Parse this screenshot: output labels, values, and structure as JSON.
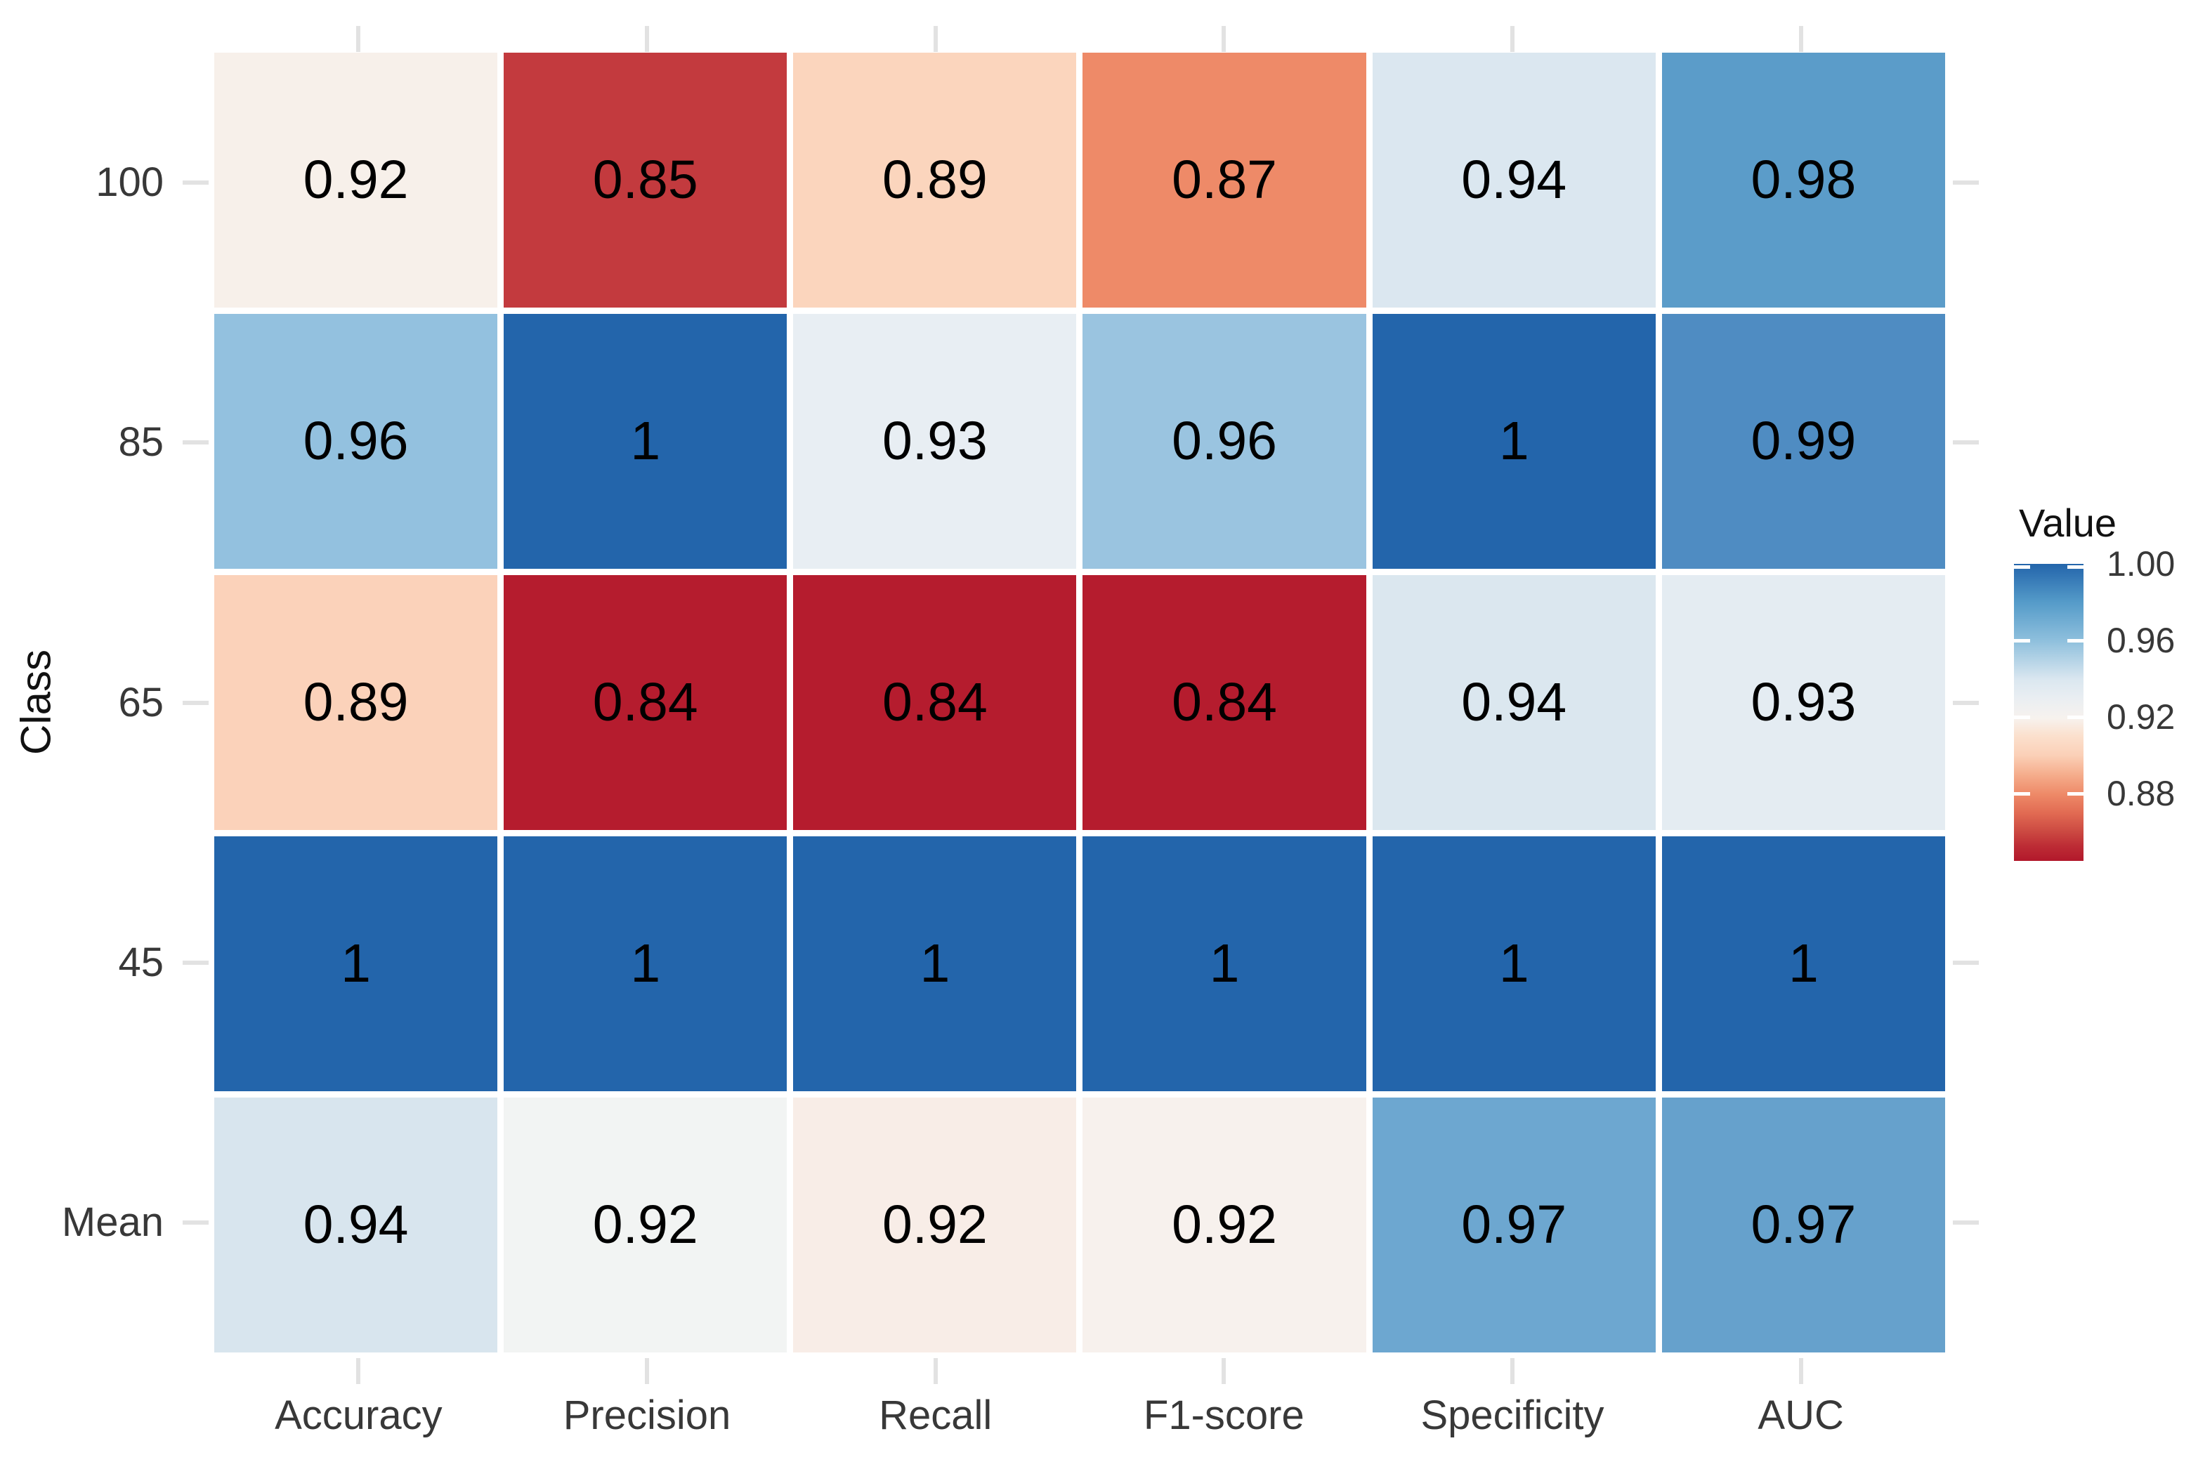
{
  "chart_data": {
    "type": "heatmap",
    "title": "",
    "xlabel": "",
    "ylabel": "Class",
    "rows": [
      "100",
      "85",
      "65",
      "45",
      "Mean"
    ],
    "columns": [
      "Accuracy",
      "Precision",
      "Recall",
      "F1-score",
      "Specificity",
      "AUC"
    ],
    "values": [
      [
        0.92,
        0.85,
        0.89,
        0.87,
        0.94,
        0.98
      ],
      [
        0.96,
        1,
        0.93,
        0.96,
        1,
        0.99
      ],
      [
        0.89,
        0.84,
        0.84,
        0.84,
        0.94,
        0.93
      ],
      [
        1,
        1,
        1,
        1,
        1,
        1
      ],
      [
        0.94,
        0.92,
        0.92,
        0.92,
        0.97,
        0.97
      ]
    ],
    "value_labels": [
      [
        "0.92",
        "0.85",
        "0.89",
        "0.87",
        "0.94",
        "0.98"
      ],
      [
        "0.96",
        "1",
        "0.93",
        "0.96",
        "1",
        "0.99"
      ],
      [
        "0.89",
        "0.84",
        "0.84",
        "0.84",
        "0.94",
        "0.93"
      ],
      [
        "1",
        "1",
        "1",
        "1",
        "1",
        "1"
      ],
      [
        "0.94",
        "0.92",
        "0.92",
        "0.92",
        "0.97",
        "0.97"
      ]
    ],
    "cell_colors": [
      [
        "#f7f0ea",
        "#c33a3e",
        "#fbd5bd",
        "#ee8a68",
        "#dbe7f0",
        "#5b9cc9"
      ],
      [
        "#93c1df",
        "#2365ab",
        "#e8eef3",
        "#9ac4e0",
        "#2365ab",
        "#4f8cc2"
      ],
      [
        "#fbd2ba",
        "#b51c2e",
        "#b51c2e",
        "#b51c2e",
        "#dbe7ef",
        "#e4ecf2"
      ],
      [
        "#2365ab",
        "#2365ab",
        "#2365ab",
        "#2365ab",
        "#2365ab",
        "#2365ab"
      ],
      [
        "#d8e5ee",
        "#f2f4f3",
        "#f8ede7",
        "#f7f1ed",
        "#6da7d0",
        "#66a1cc"
      ]
    ],
    "grid_lines": "none (white gaps between tiles)",
    "legend": {
      "title": "Value",
      "tick_labels": [
        "1.00",
        "0.96",
        "0.92",
        "0.88"
      ],
      "domain": [
        0.845,
        1.0
      ],
      "colormap": "diverging red-white-blue (low=dark red, high=dark blue)",
      "gradient": [
        {
          "pos": 0,
          "color": "#2365ab"
        },
        {
          "pos": 13,
          "color": "#559bc9"
        },
        {
          "pos": 26,
          "color": "#8fc0dd"
        },
        {
          "pos": 39,
          "color": "#dbe7f0"
        },
        {
          "pos": 45,
          "color": "#e9eef2"
        },
        {
          "pos": 52,
          "color": "#f7f2ee"
        },
        {
          "pos": 58,
          "color": "#fbe0cd"
        },
        {
          "pos": 64.5,
          "color": "#fbd0b7"
        },
        {
          "pos": 71,
          "color": "#f5ad8c"
        },
        {
          "pos": 77.5,
          "color": "#ee8a68"
        },
        {
          "pos": 84,
          "color": "#e16a52"
        },
        {
          "pos": 90,
          "color": "#cc4a42"
        },
        {
          "pos": 95,
          "color": "#bd2c35"
        },
        {
          "pos": 100,
          "color": "#b2182b"
        }
      ]
    },
    "tick_color": "#e2e2e2",
    "value_text_color": "#000000",
    "axis_text_color": "#383838"
  }
}
